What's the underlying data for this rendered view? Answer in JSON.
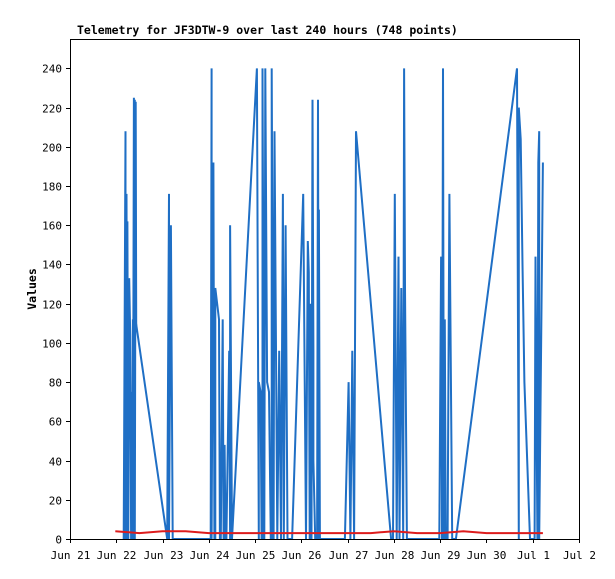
{
  "chart_data": {
    "type": "line",
    "title": "Telemetry for JF3DTW-9 over last 240 hours (748 points)",
    "xlabel": "",
    "ylabel": "Values",
    "xlim": [
      0,
      11
    ],
    "ylim": [
      0,
      255
    ],
    "grid": false,
    "legend": "none",
    "x_ticks": [
      {
        "x": 0,
        "label": "Jun 21"
      },
      {
        "x": 1,
        "label": "Jun 22"
      },
      {
        "x": 2,
        "label": "Jun 23"
      },
      {
        "x": 3,
        "label": "Jun 24"
      },
      {
        "x": 4,
        "label": "Jun 25"
      },
      {
        "x": 5,
        "label": "Jun 26"
      },
      {
        "x": 6,
        "label": "Jun 27"
      },
      {
        "x": 7,
        "label": "Jun 28"
      },
      {
        "x": 8,
        "label": "Jun 29"
      },
      {
        "x": 9,
        "label": "Jun 30"
      },
      {
        "x": 10,
        "label": "Jul 1"
      },
      {
        "x": 11,
        "label": "Jul 2"
      }
    ],
    "y_ticks": [
      0,
      20,
      40,
      60,
      80,
      100,
      120,
      140,
      160,
      180,
      200,
      220,
      240
    ],
    "series": [
      {
        "color": "#1f6fc5",
        "x": [
          1.16,
          1.2,
          1.2,
          1.22,
          1.24,
          1.24,
          1.26,
          1.28,
          1.3,
          1.32,
          1.32,
          1.34,
          1.36,
          1.36,
          1.38,
          1.38,
          1.4,
          1.4,
          1.42,
          1.43,
          1.44,
          2.1,
          2.14,
          2.14,
          2.18,
          2.22,
          2.22,
          2.26,
          3.04,
          3.06,
          3.06,
          3.1,
          3.12,
          3.14,
          3.14,
          3.22,
          3.24,
          3.26,
          3.3,
          3.32,
          3.34,
          3.36,
          3.38,
          3.44,
          3.46,
          3.46,
          3.5,
          4.04,
          4.08,
          4.08,
          4.12,
          4.14,
          4.16,
          4.16,
          4.2,
          4.22,
          4.26,
          4.3,
          4.34,
          4.36,
          4.36,
          4.4,
          4.42,
          4.48,
          4.52,
          4.56,
          4.56,
          4.6,
          4.62,
          4.66,
          4.7,
          4.76,
          4.8,
          5.04,
          5.1,
          5.1,
          5.14,
          5.16,
          5.18,
          5.2,
          5.22,
          5.22,
          5.24,
          5.26,
          5.26,
          5.3,
          5.34,
          5.36,
          5.38,
          5.38,
          5.4,
          5.42,
          5.44,
          5.46,
          5.48,
          5.9,
          5.94,
          6.02,
          6.06,
          6.1,
          6.14,
          6.14,
          6.18,
          6.94,
          6.98,
          7.02,
          7.06,
          7.1,
          7.12,
          7.16,
          7.2,
          7.22,
          7.24,
          7.28,
          7.98,
          8.02,
          8.04,
          8.06,
          8.08,
          8.1,
          8.12,
          8.16,
          8.2,
          8.26,
          8.3,
          8.34,
          9.66,
          9.7,
          9.7,
          9.74,
          9.78,
          9.82,
          9.88,
          9.94,
          10.02,
          10.04,
          10.06,
          10.1,
          10.12,
          10.14,
          10.14,
          10.2,
          10.22
        ],
        "values": [
          0,
          208,
          0,
          176,
          0,
          162,
          0,
          133,
          104,
          0,
          75,
          0,
          112,
          0,
          225,
          0,
          224,
          0,
          223,
          110,
          108,
          0,
          176,
          0,
          160,
          0,
          0,
          0,
          0,
          240,
          0,
          192,
          0,
          0,
          128,
          112,
          0,
          0,
          112,
          0,
          48,
          0,
          0,
          96,
          0,
          160,
          0,
          240,
          0,
          80,
          75,
          0,
          0,
          240,
          0,
          240,
          80,
          75,
          0,
          0,
          240,
          0,
          208,
          0,
          96,
          0,
          0,
          176,
          0,
          160,
          0,
          0,
          0,
          176,
          0,
          0,
          152,
          136,
          0,
          120,
          0,
          0,
          224,
          96,
          40,
          0,
          0,
          224,
          0,
          168,
          0,
          0,
          0,
          0,
          0,
          0,
          0,
          80,
          0,
          96,
          0,
          0,
          208,
          0,
          0,
          176,
          0,
          144,
          0,
          128,
          0,
          240,
          128,
          0,
          0,
          144,
          0,
          240,
          0,
          112,
          0,
          0,
          176,
          0,
          0,
          0,
          240,
          0,
          220,
          204,
          140,
          80,
          40,
          0,
          0,
          0,
          144,
          0,
          192,
          208,
          0,
          144,
          192
        ]
      },
      {
        "color": "#dd1c1c",
        "x": [
          0.98,
          1.5,
          2.0,
          2.5,
          3.0,
          3.5,
          4.0,
          4.5,
          5.0,
          5.5,
          6.0,
          6.5,
          7.0,
          7.5,
          8.0,
          8.5,
          9.0,
          9.5,
          10.0,
          10.22
        ],
        "values": [
          4,
          3,
          4,
          4,
          3,
          3,
          3,
          3,
          3,
          3,
          3,
          3,
          4,
          3,
          3,
          4,
          3,
          3,
          3,
          3
        ]
      }
    ]
  }
}
